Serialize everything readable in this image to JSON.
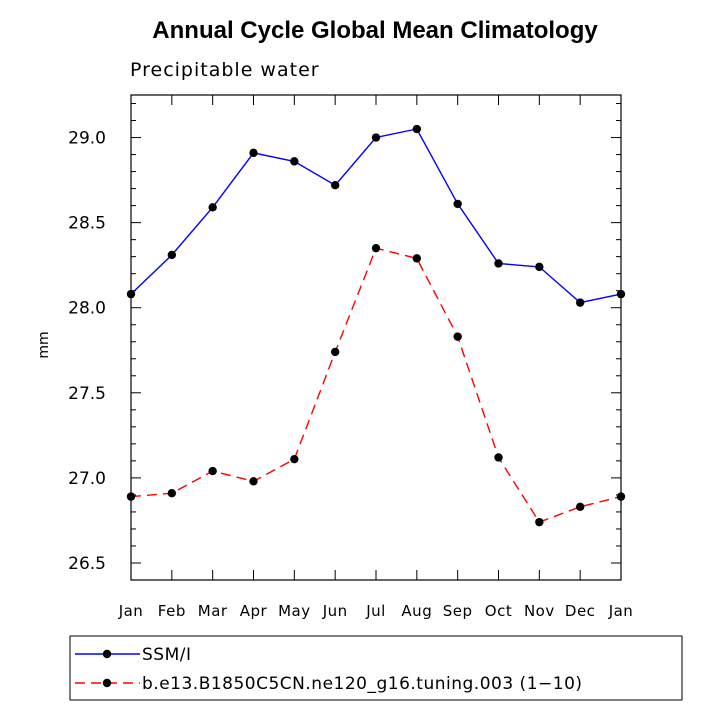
{
  "chart_data": {
    "type": "line",
    "title": "Annual Cycle Global Mean Climatology",
    "subtitle": "Precipitable water",
    "ylabel": "mm",
    "xlabel": "",
    "categories": [
      "Jan",
      "Feb",
      "Mar",
      "Apr",
      "May",
      "Jun",
      "Jul",
      "Aug",
      "Sep",
      "Oct",
      "Nov",
      "Dec",
      "Jan"
    ],
    "ylim": [
      26.4,
      29.25
    ],
    "yticks": [
      26.5,
      27.0,
      27.5,
      28.0,
      28.5,
      29.0
    ],
    "ytick_labels": [
      "26.5",
      "27.0",
      "27.5",
      "28.0",
      "28.5",
      "29.0"
    ],
    "series": [
      {
        "name": "SSM/I",
        "color": "#0000ff",
        "dash": "solid",
        "values": [
          28.08,
          28.31,
          28.59,
          28.91,
          28.86,
          28.72,
          29.0,
          29.05,
          28.61,
          28.26,
          28.24,
          28.03,
          28.08
        ]
      },
      {
        "name": "b.e13.B1850C5CN.ne120_g16.tuning.003 (1−10)",
        "color": "#ff0000",
        "dash": "dashed",
        "values": [
          26.89,
          26.91,
          27.04,
          26.98,
          27.11,
          27.74,
          28.35,
          28.29,
          27.83,
          27.12,
          26.74,
          26.83,
          26.89
        ]
      }
    ],
    "legend_position": "bottom"
  }
}
